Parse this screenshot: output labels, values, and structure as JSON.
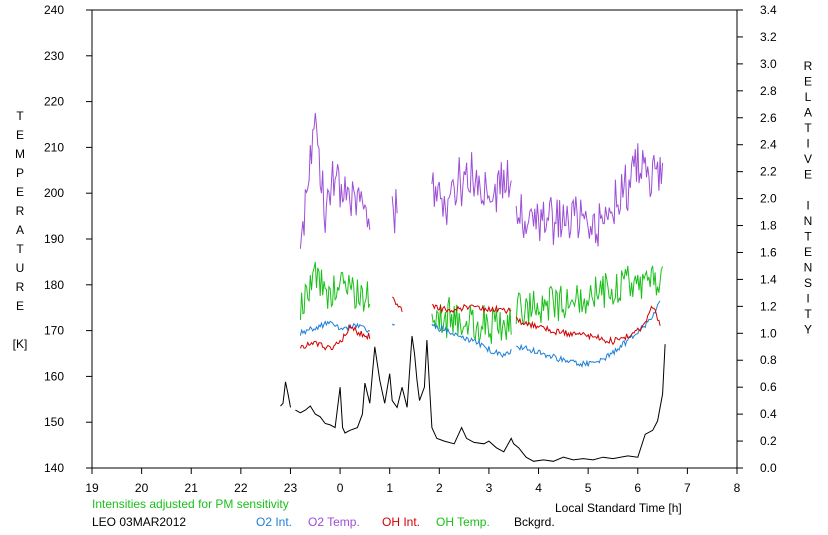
{
  "chart_data": {
    "type": "line",
    "xlabel": "Local Standard Time [h]",
    "ylabel_left": "TEMPERATURE [K]",
    "ylabel_left_letters": [
      "T",
      "E",
      "M",
      "P",
      "E",
      "R",
      "A",
      "T",
      "U",
      "R",
      "E",
      "",
      "[K]"
    ],
    "ylabel_right": "RELATIVE INTENSITY",
    "ylabel_right_letters": [
      "R",
      "E",
      "L",
      "A",
      "T",
      "I",
      "V",
      "E",
      "",
      "I",
      "N",
      "T",
      "E",
      "N",
      "S",
      "I",
      "T",
      "Y"
    ],
    "x_ticks": [
      19,
      20,
      21,
      22,
      23,
      0,
      1,
      2,
      3,
      4,
      5,
      6,
      7,
      8
    ],
    "x_tick_labels": [
      "19",
      "20",
      "21",
      "22",
      "23",
      "0",
      "1",
      "2",
      "3",
      "4",
      "5",
      "6",
      "7",
      "8"
    ],
    "ylim_left": [
      140,
      240
    ],
    "y_ticks_left": [
      140,
      150,
      160,
      170,
      180,
      190,
      200,
      210,
      220,
      230,
      240
    ],
    "ylim_right": [
      0.0,
      3.4
    ],
    "y_ticks_right": [
      "0.0",
      "0.2",
      "0.4",
      "0.6",
      "0.8",
      "1.0",
      "1.2",
      "1.4",
      "1.6",
      "1.8",
      "2.0",
      "2.2",
      "2.4",
      "2.6",
      "2.8",
      "3.0",
      "3.2",
      "3.4"
    ],
    "grid": false,
    "note": "Intensities adjusted for PM sensitivity",
    "station_label": "LEO 03MAR2012",
    "legend": [
      {
        "label": "O2 Int.",
        "color": "#1e7fd6"
      },
      {
        "label": "O2 Temp.",
        "color": "#9c4fd6"
      },
      {
        "label": "OH Int.",
        "color": "#d10000"
      },
      {
        "label": "OH Temp.",
        "color": "#19c019"
      },
      {
        "label": "Bckgrd.",
        "color": "#000000"
      }
    ],
    "series": [
      {
        "name": "O2 Temp.",
        "axis": "left",
        "color": "#9c4fd6",
        "noise": 6,
        "segments": [
          [
            [
              23.2,
              186
            ],
            [
              23.35,
              205
            ],
            [
              23.5,
              214
            ],
            [
              23.7,
              196
            ],
            [
              23.9,
              204
            ],
            [
              24.1,
              198
            ],
            [
              24.3,
              199
            ],
            [
              24.5,
              195
            ],
            [
              24.6,
              193
            ]
          ],
          [
            [
              25.05,
              194
            ],
            [
              25.15,
              200
            ]
          ],
          [
            [
              25.85,
              200
            ],
            [
              26.1,
              198
            ],
            [
              26.4,
              203
            ],
            [
              26.8,
              203
            ],
            [
              27.1,
              201
            ],
            [
              27.3,
              204
            ],
            [
              27.45,
              201
            ]
          ],
          [
            [
              27.55,
              195
            ],
            [
              28.0,
              194
            ],
            [
              28.5,
              195
            ],
            [
              29.0,
              192
            ],
            [
              29.5,
              197
            ],
            [
              30.0,
              205
            ],
            [
              30.3,
              204
            ],
            [
              30.5,
              202
            ]
          ]
        ]
      },
      {
        "name": "OH Temp.",
        "axis": "left",
        "color": "#19c019",
        "noise": 4.5,
        "segments": [
          [
            [
              23.2,
              175
            ],
            [
              23.5,
              182
            ],
            [
              23.8,
              178
            ],
            [
              24.0,
              180
            ],
            [
              24.3,
              179
            ],
            [
              24.6,
              176
            ]
          ],
          [
            [
              25.85,
              172
            ],
            [
              26.2,
              173
            ],
            [
              26.6,
              172
            ],
            [
              27.0,
              171
            ],
            [
              27.45,
              172
            ]
          ],
          [
            [
              27.55,
              175
            ],
            [
              28.0,
              176
            ],
            [
              28.5,
              176
            ],
            [
              29.0,
              177
            ],
            [
              29.5,
              179
            ],
            [
              29.8,
              180
            ],
            [
              30.1,
              180
            ],
            [
              30.5,
              180
            ]
          ]
        ]
      },
      {
        "name": "O2 Int.",
        "axis": "right",
        "color": "#1e7fd6",
        "noise": 0.025,
        "segments": [
          [
            [
              23.2,
              1.0
            ],
            [
              23.5,
              1.05
            ],
            [
              23.8,
              1.07
            ],
            [
              24.0,
              1.04
            ],
            [
              24.3,
              1.06
            ],
            [
              24.6,
              1.02
            ]
          ],
          [
            [
              25.05,
              1.05
            ],
            [
              25.1,
              1.08
            ]
          ],
          [
            [
              25.85,
              1.05
            ],
            [
              26.1,
              1.03
            ],
            [
              26.4,
              0.98
            ],
            [
              26.7,
              0.94
            ],
            [
              27.0,
              0.88
            ],
            [
              27.3,
              0.84
            ],
            [
              27.45,
              0.86
            ]
          ],
          [
            [
              27.55,
              0.9
            ],
            [
              28.0,
              0.86
            ],
            [
              28.4,
              0.81
            ],
            [
              28.8,
              0.77
            ],
            [
              29.2,
              0.78
            ],
            [
              29.5,
              0.85
            ],
            [
              29.8,
              0.95
            ],
            [
              30.1,
              1.05
            ],
            [
              30.3,
              1.12
            ],
            [
              30.45,
              1.25
            ]
          ]
        ]
      },
      {
        "name": "OH Int.",
        "axis": "right",
        "color": "#d10000",
        "noise": 0.025,
        "segments": [
          [
            [
              23.2,
              0.9
            ],
            [
              23.5,
              0.92
            ],
            [
              23.8,
              0.89
            ],
            [
              24.0,
              0.93
            ],
            [
              24.2,
              1.05
            ],
            [
              24.4,
              1.0
            ],
            [
              24.6,
              0.98
            ]
          ],
          [
            [
              25.05,
              1.29
            ],
            [
              25.15,
              1.2
            ],
            [
              25.25,
              1.18
            ]
          ],
          [
            [
              25.85,
              1.2
            ],
            [
              26.2,
              1.17
            ],
            [
              26.6,
              1.2
            ],
            [
              27.0,
              1.18
            ],
            [
              27.45,
              1.17
            ]
          ],
          [
            [
              27.55,
              1.1
            ],
            [
              28.0,
              1.05
            ],
            [
              28.5,
              1.0
            ],
            [
              29.0,
              0.98
            ],
            [
              29.5,
              0.94
            ],
            [
              29.8,
              0.98
            ],
            [
              30.1,
              1.05
            ],
            [
              30.3,
              1.2
            ],
            [
              30.45,
              1.08
            ]
          ]
        ]
      },
      {
        "name": "Bckgrd.",
        "axis": "right",
        "color": "#000000",
        "noise": 0,
        "segments": [
          [
            [
              22.8,
              0.46
            ],
            [
              22.85,
              0.48
            ],
            [
              22.9,
              0.64
            ],
            [
              22.95,
              0.55
            ],
            [
              23.0,
              0.45
            ]
          ],
          [
            [
              23.1,
              0.43
            ],
            [
              23.2,
              0.41
            ],
            [
              23.3,
              0.43
            ],
            [
              23.4,
              0.46
            ],
            [
              23.5,
              0.4
            ],
            [
              23.6,
              0.38
            ],
            [
              23.7,
              0.33
            ],
            [
              23.8,
              0.32
            ],
            [
              23.9,
              0.3
            ],
            [
              24.0,
              0.6
            ],
            [
              24.05,
              0.3
            ],
            [
              24.1,
              0.26
            ],
            [
              24.2,
              0.28
            ],
            [
              24.35,
              0.3
            ],
            [
              24.45,
              0.4
            ],
            [
              24.5,
              0.63
            ],
            [
              24.6,
              0.48
            ],
            [
              24.7,
              0.9
            ],
            [
              24.8,
              0.65
            ],
            [
              24.9,
              0.48
            ],
            [
              25.0,
              0.7
            ],
            [
              25.05,
              0.5
            ],
            [
              25.15,
              0.45
            ],
            [
              25.25,
              0.6
            ],
            [
              25.35,
              0.45
            ],
            [
              25.45,
              0.98
            ],
            [
              25.5,
              0.85
            ],
            [
              25.55,
              0.65
            ],
            [
              25.6,
              0.5
            ],
            [
              25.7,
              0.6
            ],
            [
              25.75,
              0.95
            ],
            [
              25.8,
              0.62
            ],
            [
              25.85,
              0.3
            ],
            [
              25.95,
              0.22
            ],
            [
              26.1,
              0.2
            ],
            [
              26.3,
              0.18
            ],
            [
              26.45,
              0.3
            ],
            [
              26.55,
              0.22
            ],
            [
              26.7,
              0.19
            ],
            [
              26.9,
              0.18
            ],
            [
              27.0,
              0.2
            ],
            [
              27.15,
              0.15
            ],
            [
              27.3,
              0.12
            ],
            [
              27.45,
              0.22
            ],
            [
              27.5,
              0.18
            ],
            [
              27.6,
              0.15
            ],
            [
              27.75,
              0.08
            ],
            [
              27.9,
              0.05
            ],
            [
              28.1,
              0.06
            ],
            [
              28.3,
              0.05
            ],
            [
              28.5,
              0.08
            ],
            [
              28.7,
              0.06
            ],
            [
              28.9,
              0.07
            ],
            [
              29.1,
              0.06
            ],
            [
              29.3,
              0.08
            ],
            [
              29.5,
              0.07
            ],
            [
              29.8,
              0.09
            ],
            [
              30.0,
              0.08
            ],
            [
              30.15,
              0.25
            ],
            [
              30.3,
              0.28
            ],
            [
              30.4,
              0.35
            ],
            [
              30.5,
              0.55
            ],
            [
              30.55,
              0.92
            ]
          ]
        ]
      }
    ]
  }
}
